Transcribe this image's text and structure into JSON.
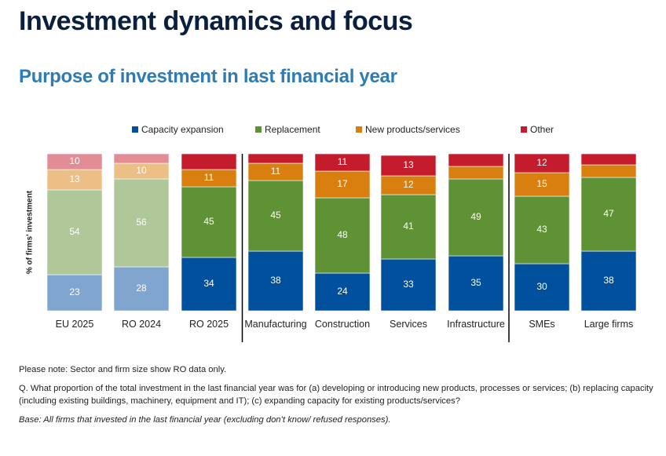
{
  "header": {
    "title": "Investment dynamics and focus",
    "subtitle": "Purpose of investment in last financial year"
  },
  "notes": {
    "note": "Please note: Sector and firm size show RO data only.",
    "question": "Q. What proportion of the total investment in the last financial year was for (a) developing or introducing new products, processes or services; (b) replacing capacity (including existing buildings, machinery, equipment and IT); (c) expanding capacity for existing products/services?",
    "base": "Base: All firms that invested in the last financial year (excluding don’t know/ refused responses)."
  },
  "chart_data": {
    "type": "bar",
    "stacked": true,
    "percent_stacked": true,
    "title": "Purpose of investment in last financial year",
    "xlabel": "",
    "ylabel": "% of firms' investment",
    "ylim": [
      0,
      100
    ],
    "grid": false,
    "legend_position": "top",
    "categories": [
      "EU 2025",
      "RO 2024",
      "RO 2025",
      "Manufacturing",
      "Construction",
      "Services",
      "Infrastructure",
      "SMEs",
      "Large firms"
    ],
    "faded_categories": [
      "EU 2025",
      "RO 2024"
    ],
    "group_separators_after": [
      "RO 2025",
      "Infrastructure"
    ],
    "series": [
      {
        "name": "Capacity expansion",
        "color": "#00509e",
        "faded_color": "#80a6d0",
        "values": [
          23,
          28,
          34,
          38,
          24,
          33,
          35,
          30,
          38
        ],
        "labels_shown": [
          true,
          true,
          true,
          true,
          true,
          true,
          true,
          true,
          true
        ]
      },
      {
        "name": "Replacement",
        "color": "#5f9234",
        "faded_color": "#afc799",
        "values": [
          54,
          56,
          45,
          45,
          48,
          41,
          49,
          43,
          47
        ],
        "labels_shown": [
          true,
          true,
          true,
          true,
          true,
          true,
          true,
          true,
          true
        ]
      },
      {
        "name": "New products/services",
        "color": "#d97f10",
        "faded_color": "#ecbf87",
        "values": [
          13,
          10,
          11,
          11,
          17,
          12,
          8,
          15,
          8
        ],
        "labels_shown": [
          true,
          true,
          true,
          true,
          true,
          true,
          false,
          true,
          false
        ]
      },
      {
        "name": "Other",
        "color": "#c41b2d",
        "faded_color": "#e28d96",
        "values": [
          10,
          6,
          10,
          6,
          11,
          13,
          8,
          12,
          7
        ],
        "labels_shown": [
          true,
          false,
          false,
          false,
          true,
          true,
          false,
          true,
          false
        ]
      }
    ]
  }
}
